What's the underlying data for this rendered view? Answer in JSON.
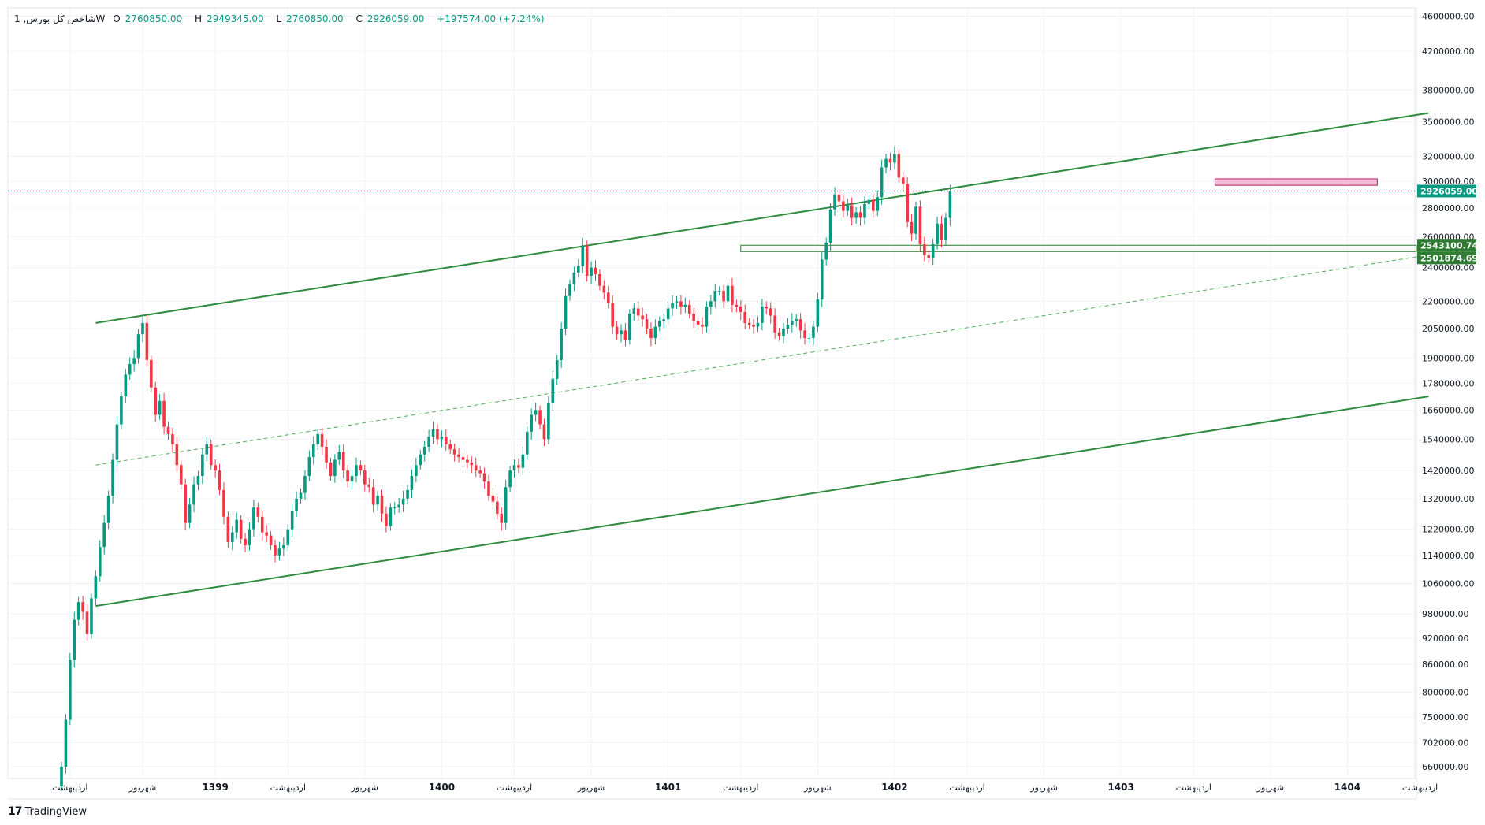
{
  "legend": {
    "symbol": "شاخص کل بورس, 1W",
    "open_label": "O",
    "open": "2760850.00",
    "high_label": "H",
    "high": "2949345.00",
    "low_label": "L",
    "low": "2760850.00",
    "close_label": "C",
    "close": "2926059.00",
    "change": "+197574.00 (+7.24%)"
  },
  "brand": {
    "logo": "17",
    "name": "TradingView"
  },
  "colors": {
    "up": "#089981",
    "down": "#f23645",
    "channel": "#2e8b3e",
    "midline": "#4caf50",
    "zone": "#f8bbd9",
    "zone_border": "#c2185b",
    "current_price": "#089981",
    "level_label": "#2e7d32"
  },
  "chart_data": {
    "type": "candlestick",
    "title": "",
    "price_axis": {
      "scale": "log",
      "ticks": [
        "4600000.00",
        "4200000.00",
        "3800000.00",
        "3500000.00",
        "3200000.00",
        "3000000.00",
        "2800000.00",
        "2600000.00",
        "2400000.00",
        "2200000.00",
        "2050000.00",
        "1900000.00",
        "1780000.00",
        "1660000.00",
        "1540000.00",
        "1420000.00",
        "1320000.00",
        "1220000.00",
        "1140000.00",
        "1060000.00",
        "980000.00",
        "920000.00",
        "860000.00",
        "800000.00",
        "750000.00",
        "702000.00",
        "660000.00"
      ],
      "range": [
        640000,
        4700000
      ]
    },
    "time_axis": {
      "ticks": [
        {
          "label": "اردیبهشت",
          "i": 2
        },
        {
          "label": "شهریور",
          "i": 19
        },
        {
          "label": "1399",
          "i": 36
        },
        {
          "label": "اردیبهشت",
          "i": 53
        },
        {
          "label": "شهریور",
          "i": 71
        },
        {
          "label": "1400",
          "i": 89
        },
        {
          "label": "اردیبهشت",
          "i": 106
        },
        {
          "label": "شهریور",
          "i": 124
        },
        {
          "label": "1401",
          "i": 142
        },
        {
          "label": "اردیبهشت",
          "i": 159
        },
        {
          "label": "شهریور",
          "i": 177
        },
        {
          "label": "1402",
          "i": 195
        },
        {
          "label": "اردیبهشت",
          "i": 212
        },
        {
          "label": "شهریور",
          "i": 230
        },
        {
          "label": "1403",
          "i": 248
        },
        {
          "label": "اردیبهشت",
          "i": 265
        },
        {
          "label": "شهریور",
          "i": 283
        },
        {
          "label": "1404",
          "i": 301
        },
        {
          "label": "اردیبهشت",
          "i": 318
        }
      ]
    },
    "closes": [
      660000,
      745000,
      870000,
      965000,
      1010000,
      985000,
      930000,
      1020000,
      1080000,
      1165000,
      1240000,
      1330000,
      1460000,
      1600000,
      1720000,
      1820000,
      1870000,
      1900000,
      2020000,
      2080000,
      1890000,
      1760000,
      1640000,
      1700000,
      1590000,
      1560000,
      1520000,
      1440000,
      1370000,
      1240000,
      1300000,
      1370000,
      1400000,
      1480000,
      1520000,
      1440000,
      1420000,
      1350000,
      1260000,
      1180000,
      1210000,
      1250000,
      1190000,
      1170000,
      1220000,
      1290000,
      1260000,
      1210000,
      1200000,
      1170000,
      1140000,
      1160000,
      1170000,
      1220000,
      1280000,
      1320000,
      1340000,
      1400000,
      1470000,
      1520000,
      1560000,
      1510000,
      1450000,
      1400000,
      1460000,
      1490000,
      1420000,
      1380000,
      1400000,
      1440000,
      1420000,
      1370000,
      1360000,
      1300000,
      1330000,
      1270000,
      1230000,
      1290000,
      1290000,
      1300000,
      1320000,
      1350000,
      1400000,
      1440000,
      1480000,
      1510000,
      1550000,
      1580000,
      1540000,
      1550000,
      1520000,
      1500000,
      1480000,
      1470000,
      1460000,
      1450000,
      1440000,
      1420000,
      1410000,
      1380000,
      1330000,
      1310000,
      1270000,
      1240000,
      1360000,
      1420000,
      1440000,
      1430000,
      1480000,
      1570000,
      1640000,
      1660000,
      1600000,
      1540000,
      1690000,
      1800000,
      1890000,
      2050000,
      2230000,
      2300000,
      2370000,
      2410000,
      2540000,
      2350000,
      2400000,
      2360000,
      2290000,
      2250000,
      2190000,
      2060000,
      2020000,
      2040000,
      1990000,
      2130000,
      2160000,
      2120000,
      2100000,
      2050000,
      2000000,
      2060000,
      2090000,
      2100000,
      2160000,
      2190000,
      2200000,
      2170000,
      2180000,
      2130000,
      2090000,
      2070000,
      2060000,
      2170000,
      2200000,
      2260000,
      2260000,
      2200000,
      2290000,
      2180000,
      2170000,
      2140000,
      2080000,
      2070000,
      2060000,
      2080000,
      2170000,
      2160000,
      2120000,
      2030000,
      2010000,
      2050000,
      2070000,
      2090000,
      2100000,
      2040000,
      2000000,
      2000000,
      2060000,
      2210000,
      2450000,
      2560000,
      2790000,
      2900000,
      2850000,
      2780000,
      2820000,
      2730000,
      2770000,
      2730000,
      2830000,
      2860000,
      2780000,
      2880000,
      3110000,
      3180000,
      3150000,
      3220000,
      3030000,
      2980000,
      2700000,
      2620000,
      2810000,
      2550000,
      2480000,
      2460000,
      2550000,
      2690000,
      2580000,
      2730000,
      2926059
    ]
  },
  "levels": {
    "current_price": 2926059,
    "current_price_label": "2926059.00",
    "support_1": 2543100.74,
    "support_1_label": "2543100.74",
    "support_2": 2501874.69,
    "support_2_label": "2501874.69"
  },
  "drawings": {
    "channel_upper": [
      [
        8,
        2080000
      ],
      [
        320,
        3580000
      ]
    ],
    "channel_lower": [
      [
        8,
        1000000
      ],
      [
        320,
        1720000
      ]
    ],
    "channel_mid": [
      [
        8,
        1440000
      ],
      [
        320,
        2480000
      ]
    ],
    "support_zone": {
      "from_i": 159,
      "to_i": 320
    },
    "resistance_zone": {
      "from_i": 270,
      "to_i": 308,
      "low": 2970000,
      "high": 3020000
    }
  }
}
